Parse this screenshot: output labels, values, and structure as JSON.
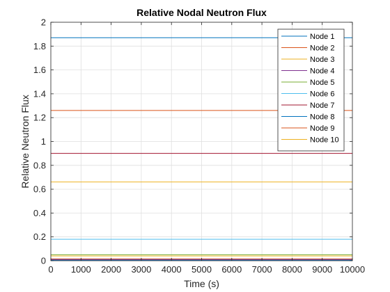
{
  "chart_data": {
    "type": "line",
    "title": "Relative Nodal Neutron Flux",
    "xlabel": "Time (s)",
    "ylabel": "Relative Neutron Flux",
    "xlim": [
      0,
      10000
    ],
    "ylim": [
      0,
      2
    ],
    "x_ticks": [
      "0",
      "1000",
      "2000",
      "3000",
      "4000",
      "5000",
      "6000",
      "7000",
      "8000",
      "9000",
      "10000"
    ],
    "y_ticks": [
      "0",
      "0.2",
      "0.4",
      "0.6",
      "0.8",
      "1",
      "1.2",
      "1.4",
      "1.6",
      "1.8",
      "2"
    ],
    "grid": true,
    "legend_position": "top-right",
    "x": [
      0,
      10000
    ],
    "series": [
      {
        "name": "Node 1",
        "color": "#0072BD",
        "values": [
          0.005,
          0.005
        ]
      },
      {
        "name": "Node 2",
        "color": "#D95319",
        "values": [
          0.015,
          0.015
        ]
      },
      {
        "name": "Node 3",
        "color": "#EDB120",
        "values": [
          0.04,
          0.04
        ]
      },
      {
        "name": "Node 4",
        "color": "#7E2F8E",
        "values": [
          0.01,
          0.01
        ]
      },
      {
        "name": "Node 5",
        "color": "#77AC30",
        "values": [
          0.05,
          0.05
        ]
      },
      {
        "name": "Node 6",
        "color": "#4DBEEE",
        "values": [
          0.18,
          0.18
        ]
      },
      {
        "name": "Node 7",
        "color": "#A2142F",
        "values": [
          0.9,
          0.9
        ]
      },
      {
        "name": "Node 8",
        "color": "#0072BD",
        "values": [
          1.87,
          1.87
        ]
      },
      {
        "name": "Node 9",
        "color": "#D95319",
        "values": [
          1.26,
          1.26
        ]
      },
      {
        "name": "Node 10",
        "color": "#EDB120",
        "values": [
          0.66,
          0.66
        ]
      }
    ]
  }
}
